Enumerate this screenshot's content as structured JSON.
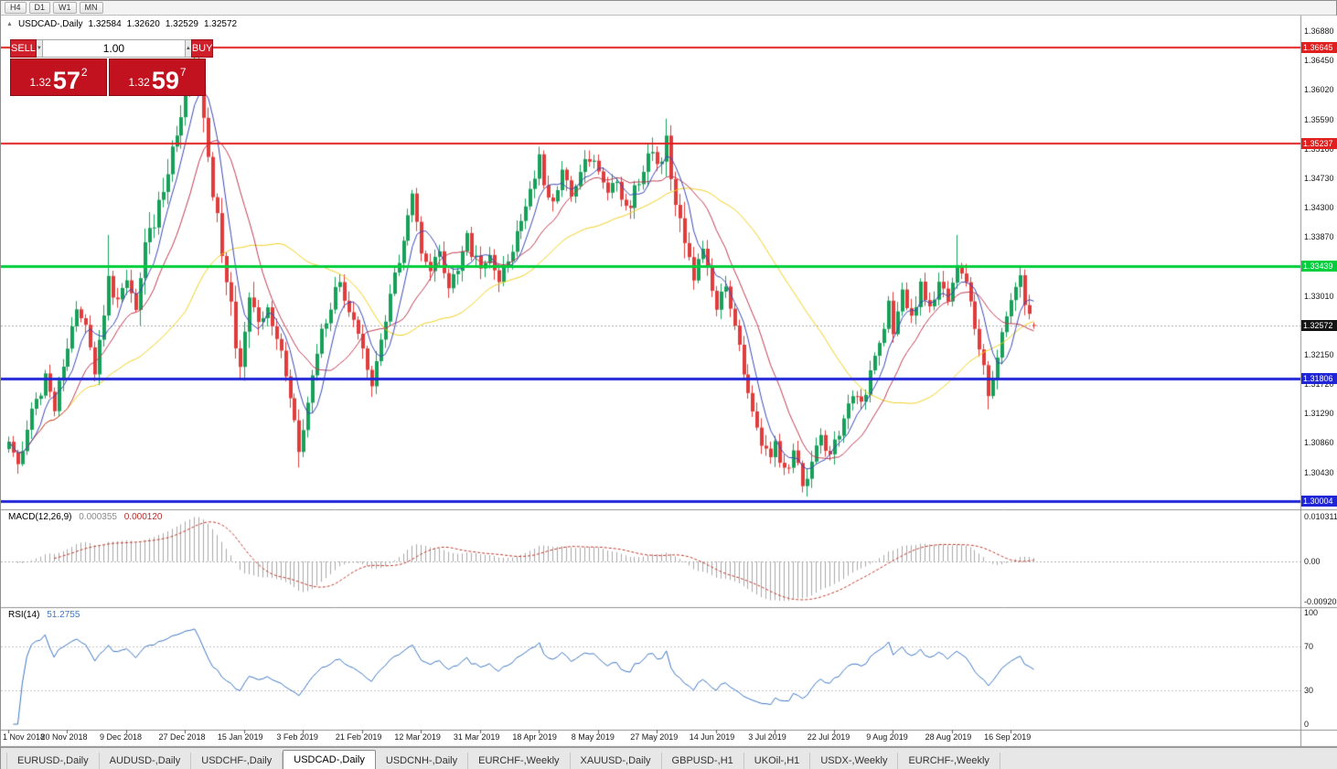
{
  "toolbar": {
    "timeframes": [
      "H4",
      "D1",
      "W1",
      "MN"
    ]
  },
  "chart": {
    "title_icon": "▲",
    "symbol": "USDCAD-,Daily",
    "ohlc": {
      "open": "1.32584",
      "high": "1.32620",
      "low": "1.32529",
      "close": "1.32572"
    },
    "trade_panel": {
      "sell_label": "SELL",
      "buy_label": "BUY",
      "volume": "1.00",
      "stepper_down": "▼",
      "stepper_up": "▲",
      "sell_price_prefix": "1.32",
      "sell_price_big": "57",
      "sell_price_sup": "2",
      "buy_price_prefix": "1.32",
      "buy_price_big": "59",
      "buy_price_sup": "7"
    },
    "price_axis": {
      "labels": [
        "1.36880",
        "1.36450",
        "1.36020",
        "1.35590",
        "1.35160",
        "1.34730",
        "1.34300",
        "1.33870",
        "1.33440",
        "1.33010",
        "1.32580",
        "1.32150",
        "1.31720",
        "1.31290",
        "1.30860",
        "1.30430",
        "1.30000"
      ]
    },
    "levels": [
      {
        "price": 1.36645,
        "label": "1.36645",
        "color": "#e01f1f",
        "width": 2
      },
      {
        "price": 1.35237,
        "label": "1.35237",
        "color": "#e01f1f",
        "width": 2
      },
      {
        "price": 1.33439,
        "label": "1.33439",
        "color": "#00ce3c",
        "width": 3
      },
      {
        "price": 1.31806,
        "label": "1.31806",
        "color": "#2026d8",
        "width": 3
      },
      {
        "price": 1.30004,
        "label": "1.30004",
        "color": "#2026d8",
        "width": 3
      }
    ],
    "bid": {
      "value": 1.32572,
      "label": "1.32572",
      "line_color": "#aaaaaa",
      "label_bg": "#141414"
    },
    "indicators": {
      "macd": {
        "name": "MACD(12,26,9)",
        "value_main": "0.000355",
        "value_signal": "0.000120",
        "axis_labels": [
          "0.010311",
          "0.00",
          "-0.009203"
        ]
      },
      "rsi": {
        "name": "RSI(14)",
        "value": "51.2755",
        "axis_labels": [
          "100",
          "70",
          "30",
          "0"
        ],
        "levels": [
          70,
          30
        ]
      }
    }
  },
  "chart_data": {
    "type": "candlestick",
    "symbol": "USDCAD",
    "timeframe": "Daily",
    "bars": 227,
    "price_range": {
      "axis_top": 1.3688,
      "axis_step": 0.0043,
      "axis_count": 17
    },
    "candle_colors": {
      "bull": "#17a05a",
      "bear": "#e03c3c"
    },
    "moving_averages": [
      {
        "period": 40,
        "color": "#f0cf1d"
      },
      {
        "period": 14,
        "color": "#c03a52"
      },
      {
        "period": 6,
        "color": "#3b49b5"
      }
    ],
    "price_anchors": [
      [
        0,
        1.3085
      ],
      [
        2,
        1.3052
      ],
      [
        4,
        1.311
      ],
      [
        6,
        1.315
      ],
      [
        8,
        1.3178
      ],
      [
        10,
        1.314
      ],
      [
        12,
        1.3195
      ],
      [
        13,
        1.3225
      ],
      [
        15,
        1.3285
      ],
      [
        17,
        1.325
      ],
      [
        19,
        1.3195
      ],
      [
        21,
        1.327
      ],
      [
        22,
        1.333
      ],
      [
        23,
        1.329
      ],
      [
        25,
        1.331
      ],
      [
        26,
        1.3325
      ],
      [
        28,
        1.329
      ],
      [
        30,
        1.3365
      ],
      [
        32,
        1.3415
      ],
      [
        34,
        1.3455
      ],
      [
        36,
        1.3505
      ],
      [
        38,
        1.356
      ],
      [
        40,
        1.3615
      ],
      [
        41,
        1.364
      ],
      [
        42,
        1.3605
      ],
      [
        43,
        1.3555
      ],
      [
        44,
        1.35
      ],
      [
        45,
        1.3455
      ],
      [
        46,
        1.341
      ],
      [
        47,
        1.337
      ],
      [
        48,
        1.333
      ],
      [
        49,
        1.3285
      ],
      [
        50,
        1.324
      ],
      [
        51,
        1.3205
      ],
      [
        52,
        1.3265
      ],
      [
        53,
        1.3295
      ],
      [
        55,
        1.3255
      ],
      [
        57,
        1.3285
      ],
      [
        59,
        1.324
      ],
      [
        61,
        1.319
      ],
      [
        63,
        1.312
      ],
      [
        64,
        1.3075
      ],
      [
        65,
        1.311
      ],
      [
        67,
        1.3185
      ],
      [
        69,
        1.3245
      ],
      [
        71,
        1.329
      ],
      [
        73,
        1.332
      ],
      [
        75,
        1.3275
      ],
      [
        77,
        1.3235
      ],
      [
        79,
        1.3195
      ],
      [
        80,
        1.3165
      ],
      [
        82,
        1.3235
      ],
      [
        84,
        1.33
      ],
      [
        86,
        1.335
      ],
      [
        88,
        1.342
      ],
      [
        89,
        1.3445
      ],
      [
        90,
        1.34
      ],
      [
        91,
        1.336
      ],
      [
        93,
        1.333
      ],
      [
        95,
        1.3365
      ],
      [
        97,
        1.331
      ],
      [
        99,
        1.3345
      ],
      [
        101,
        1.3385
      ],
      [
        103,
        1.335
      ],
      [
        104,
        1.333
      ],
      [
        106,
        1.336
      ],
      [
        108,
        1.3325
      ],
      [
        110,
        1.3355
      ],
      [
        112,
        1.339
      ],
      [
        114,
        1.3435
      ],
      [
        116,
        1.3475
      ],
      [
        117,
        1.35
      ],
      [
        118,
        1.347
      ],
      [
        120,
        1.344
      ],
      [
        122,
        1.348
      ],
      [
        124,
        1.3445
      ],
      [
        126,
        1.3475
      ],
      [
        128,
        1.3505
      ],
      [
        130,
        1.348
      ],
      [
        132,
        1.3445
      ],
      [
        134,
        1.3465
      ],
      [
        136,
        1.3425
      ],
      [
        138,
        1.3455
      ],
      [
        140,
        1.348
      ],
      [
        142,
        1.3515
      ],
      [
        144,
        1.349
      ],
      [
        145,
        1.353
      ],
      [
        146,
        1.348
      ],
      [
        147,
        1.344
      ],
      [
        149,
        1.3385
      ],
      [
        151,
        1.3325
      ],
      [
        153,
        1.3365
      ],
      [
        155,
        1.3305
      ],
      [
        156,
        1.3285
      ],
      [
        158,
        1.332
      ],
      [
        160,
        1.3265
      ],
      [
        162,
        1.319
      ],
      [
        164,
        1.3125
      ],
      [
        166,
        1.3085
      ],
      [
        168,
        1.3055
      ],
      [
        169,
        1.3078
      ],
      [
        171,
        1.3042
      ],
      [
        173,
        1.3065
      ],
      [
        175,
        1.3028
      ],
      [
        177,
        1.3052
      ],
      [
        179,
        1.3092
      ],
      [
        181,
        1.3062
      ],
      [
        182,
        1.3082
      ],
      [
        184,
        1.3122
      ],
      [
        186,
        1.3158
      ],
      [
        188,
        1.3142
      ],
      [
        190,
        1.3185
      ],
      [
        192,
        1.324
      ],
      [
        194,
        1.3285
      ],
      [
        195,
        1.3255
      ],
      [
        197,
        1.33
      ],
      [
        199,
        1.3272
      ],
      [
        201,
        1.3312
      ],
      [
        203,
        1.3285
      ],
      [
        205,
        1.3322
      ],
      [
        207,
        1.3295
      ],
      [
        208,
        1.3315
      ],
      [
        209,
        1.3345
      ],
      [
        210,
        1.3338
      ],
      [
        212,
        1.3282
      ],
      [
        214,
        1.3225
      ],
      [
        216,
        1.3158
      ],
      [
        218,
        1.321
      ],
      [
        220,
        1.3268
      ],
      [
        221,
        1.3292
      ],
      [
        223,
        1.3322
      ],
      [
        225,
        1.3268
      ],
      [
        226,
        1.32572
      ]
    ],
    "extremes": [
      {
        "bar": 22,
        "high": 1.339
      },
      {
        "bar": 41,
        "high": 1.36645
      },
      {
        "bar": 51,
        "low": 1.318
      },
      {
        "bar": 64,
        "low": 1.305
      },
      {
        "bar": 145,
        "high": 1.356
      },
      {
        "bar": 175,
        "low": 1.3015
      },
      {
        "bar": 209,
        "high": 1.339
      },
      {
        "bar": 216,
        "low": 1.3135
      }
    ],
    "date_axis": [
      {
        "label": "1 Nov 2018",
        "bar": 0
      },
      {
        "label": "20 Nov 2018",
        "bar": 13
      },
      {
        "label": "9 Dec 2018",
        "bar": 26
      },
      {
        "label": "27 Dec 2018",
        "bar": 39
      },
      {
        "label": "15 Jan 2019",
        "bar": 52
      },
      {
        "label": "3 Feb 2019",
        "bar": 65
      },
      {
        "label": "21 Feb 2019",
        "bar": 78
      },
      {
        "label": "12 Mar 2019",
        "bar": 91
      },
      {
        "label": "31 Mar 2019",
        "bar": 104
      },
      {
        "label": "18 Apr 2019",
        "bar": 117
      },
      {
        "label": "8 May 2019",
        "bar": 130
      },
      {
        "label": "27 May 2019",
        "bar": 143
      },
      {
        "label": "14 Jun 2019",
        "bar": 156
      },
      {
        "label": "3 Jul 2019",
        "bar": 169
      },
      {
        "label": "22 Jul 2019",
        "bar": 182
      },
      {
        "label": "9 Aug 2019",
        "bar": 195
      },
      {
        "label": "28 Aug 2019",
        "bar": 208
      },
      {
        "label": "16 Sep 2019",
        "bar": 221
      }
    ]
  },
  "tabs": {
    "items": [
      {
        "label": "EURUSD-,Daily",
        "active": false
      },
      {
        "label": "AUDUSD-,Daily",
        "active": false
      },
      {
        "label": "USDCHF-,Daily",
        "active": false
      },
      {
        "label": "USDCAD-,Daily",
        "active": true
      },
      {
        "label": "USDCNH-,Daily",
        "active": false
      },
      {
        "label": "EURCHF-,Weekly",
        "active": false
      },
      {
        "label": "XAUUSD-,Daily",
        "active": false
      },
      {
        "label": "GBPUSD-,H1",
        "active": false
      },
      {
        "label": "UKOil-,H1",
        "active": false
      },
      {
        "label": "USDX-,Weekly",
        "active": false
      },
      {
        "label": "EURCHF-,Weekly",
        "active": false
      }
    ]
  }
}
